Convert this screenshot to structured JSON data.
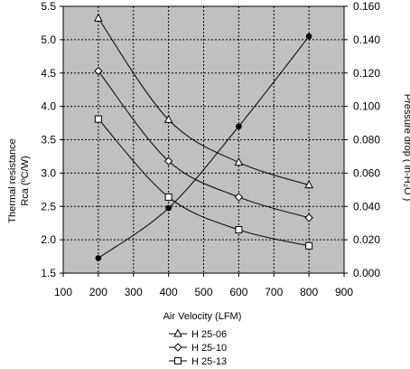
{
  "chart_data": {
    "type": "line",
    "title": "",
    "xlabel": "Air Velocity (LFM)",
    "ylabel_left": [
      "Thermal resistance",
      "Rca (ºC/W)"
    ],
    "ylabel_right": "Pressure drop ( in-H₂O )",
    "x_ticks": [
      "100",
      "200",
      "300",
      "400",
      "500",
      "600",
      "700",
      "800",
      "900"
    ],
    "y_ticks_left": [
      "1.5",
      "2.0",
      "2.5",
      "3.0",
      "3.5",
      "4.0",
      "4.5",
      "5.0",
      "5.5"
    ],
    "y_ticks_right": [
      "0.000",
      "0.020",
      "0.040",
      "0.060",
      "0.080",
      "0.100",
      "0.120",
      "0.140",
      "0.160"
    ],
    "xlim": [
      100,
      900
    ],
    "ylim_left": [
      1.5,
      5.5
    ],
    "ylim_right": [
      0,
      0.16
    ],
    "grid": true,
    "plot_background": "#c0c0c0",
    "legend_position": "bottom-center",
    "series": [
      {
        "name": "H 25-06",
        "marker": "triangle",
        "axis": "left",
        "x": [
          200,
          400,
          600,
          800
        ],
        "y": [
          5.32,
          3.8,
          3.16,
          2.82
        ]
      },
      {
        "name": "H 25-10",
        "marker": "diamond",
        "axis": "left",
        "x": [
          200,
          400,
          600,
          800
        ],
        "y": [
          4.53,
          3.18,
          2.64,
          2.33
        ]
      },
      {
        "name": "H 25-13",
        "marker": "square",
        "axis": "left",
        "x": [
          200,
          400,
          600,
          800
        ],
        "y": [
          3.81,
          2.64,
          2.15,
          1.91
        ]
      },
      {
        "name": "",
        "marker": "filled-circle",
        "axis": "right",
        "x": [
          200,
          400,
          600,
          800
        ],
        "y": [
          0.009,
          0.039,
          0.088,
          0.142
        ]
      }
    ]
  }
}
